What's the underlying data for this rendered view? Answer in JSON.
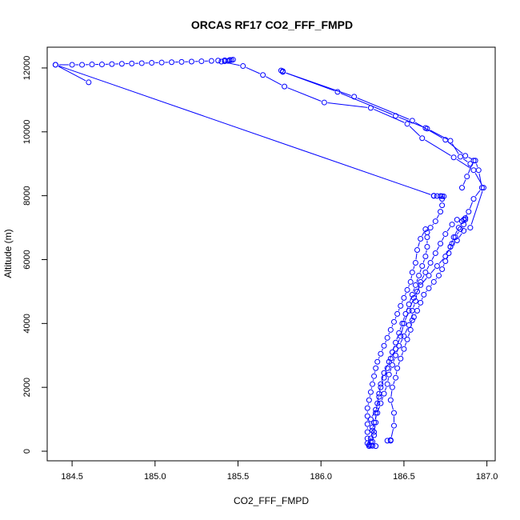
{
  "chart_data": {
    "type": "line",
    "title": "ORCAS RF17 CO2_FFF_FMPD",
    "xlabel": "CO2_FFF_FMPD",
    "ylabel": "Altitude (m)",
    "xlim": [
      184.35,
      187.05
    ],
    "ylim": [
      -300,
      12650
    ],
    "xticks": [
      184.5,
      185.0,
      185.5,
      186.0,
      186.5,
      187.0
    ],
    "xtick_labels": [
      "184.5",
      "185.0",
      "185.5",
      "186.0",
      "186.5",
      "187.0"
    ],
    "yticks": [
      0,
      2000,
      4000,
      6000,
      8000,
      10000,
      12000
    ],
    "yticks_labels": [
      "0",
      "2000",
      "4000",
      "6000",
      "8000",
      "10000",
      "12000"
    ],
    "grid": false,
    "series_color": "#0000ff",
    "line_style": "connected circles (type b)",
    "series": [
      {
        "values": [
          [
            186.3,
            180
          ],
          [
            186.31,
            300
          ],
          [
            186.32,
            500
          ],
          [
            186.31,
            750
          ],
          [
            186.3,
            1000
          ],
          [
            186.33,
            1300
          ],
          [
            186.35,
            1700
          ],
          [
            186.36,
            2000
          ],
          [
            186.38,
            2300
          ],
          [
            186.4,
            2600
          ],
          [
            186.42,
            2900
          ],
          [
            186.45,
            3200
          ],
          [
            186.48,
            3600
          ],
          [
            186.5,
            4000
          ],
          [
            186.53,
            4400
          ],
          [
            186.56,
            4800
          ],
          [
            186.6,
            5200
          ],
          [
            186.65,
            5500
          ],
          [
            186.7,
            5800
          ],
          [
            186.75,
            6100
          ],
          [
            186.78,
            6400
          ],
          [
            186.8,
            6700
          ],
          [
            186.83,
            7000
          ],
          [
            186.85,
            7200
          ],
          [
            186.87,
            7300
          ],
          [
            186.87,
            7250
          ],
          [
            186.86,
            7100
          ],
          [
            186.84,
            6950
          ],
          [
            186.81,
            6700
          ],
          [
            186.79,
            6500
          ],
          [
            186.77,
            6200
          ],
          [
            186.75,
            5950
          ],
          [
            186.73,
            5700
          ],
          [
            186.71,
            5500
          ],
          [
            186.68,
            5300
          ],
          [
            186.65,
            5100
          ],
          [
            186.62,
            4900
          ],
          [
            186.6,
            4650
          ],
          [
            186.58,
            4400
          ],
          [
            186.56,
            4200
          ],
          [
            186.53,
            3950
          ],
          [
            186.5,
            3600
          ],
          [
            186.47,
            3300
          ],
          [
            186.45,
            3000
          ],
          [
            186.43,
            2700
          ],
          [
            186.41,
            2400
          ],
          [
            186.4,
            2100
          ],
          [
            186.38,
            1800
          ],
          [
            186.36,
            1500
          ],
          [
            186.34,
            1200
          ],
          [
            186.32,
            900
          ],
          [
            186.31,
            650
          ],
          [
            186.3,
            400
          ],
          [
            186.29,
            200
          ],
          [
            186.29,
            160
          ],
          [
            186.31,
            170
          ],
          [
            186.33,
            160
          ]
        ]
      },
      {
        "values": [
          [
            186.3,
            300
          ],
          [
            186.32,
            600
          ],
          [
            186.33,
            900
          ],
          [
            186.33,
            1200
          ],
          [
            186.34,
            1500
          ],
          [
            186.35,
            1800
          ],
          [
            186.36,
            2100
          ],
          [
            186.38,
            2450
          ],
          [
            186.41,
            2800
          ],
          [
            186.43,
            3100
          ],
          [
            186.45,
            3400
          ],
          [
            186.47,
            3700
          ],
          [
            186.49,
            4000
          ],
          [
            186.51,
            4300
          ],
          [
            186.53,
            4600
          ],
          [
            186.55,
            4900
          ],
          [
            186.57,
            5200
          ],
          [
            186.59,
            5500
          ],
          [
            186.61,
            5800
          ],
          [
            186.63,
            6100
          ],
          [
            186.64,
            6400
          ],
          [
            186.64,
            6700
          ],
          [
            186.64,
            6850
          ],
          [
            186.66,
            7000
          ],
          [
            186.69,
            7200
          ],
          [
            186.72,
            7500
          ],
          [
            186.73,
            7700
          ],
          [
            186.73,
            7900
          ],
          [
            186.72,
            7990
          ],
          [
            186.73,
            7985
          ],
          [
            186.74,
            7980
          ],
          [
            186.7,
            7990
          ],
          [
            186.68,
            7995
          ]
        ]
      },
      {
        "values": [
          [
            186.68,
            8000
          ],
          [
            184.4,
            12100
          ],
          [
            184.5,
            12100
          ],
          [
            184.56,
            12100
          ],
          [
            184.62,
            12110
          ],
          [
            184.68,
            12110
          ],
          [
            184.74,
            12120
          ],
          [
            184.8,
            12130
          ],
          [
            184.86,
            12140
          ],
          [
            184.92,
            12150
          ],
          [
            184.98,
            12160
          ],
          [
            185.04,
            12170
          ],
          [
            185.1,
            12180
          ],
          [
            185.16,
            12190
          ],
          [
            185.22,
            12200
          ],
          [
            185.28,
            12210
          ],
          [
            185.34,
            12220
          ],
          [
            185.38,
            12230
          ],
          [
            185.42,
            12240
          ],
          [
            185.45,
            12250
          ],
          [
            185.46,
            12250
          ],
          [
            185.47,
            12260
          ],
          [
            185.45,
            12240
          ],
          [
            185.44,
            12220
          ],
          [
            185.42,
            12210
          ],
          [
            185.4,
            12200
          ],
          [
            185.53,
            12060
          ],
          [
            185.65,
            11780
          ],
          [
            185.78,
            11420
          ],
          [
            186.02,
            10920
          ],
          [
            186.3,
            10750
          ],
          [
            186.52,
            10250
          ],
          [
            186.61,
            9800
          ],
          [
            186.8,
            9200
          ],
          [
            186.92,
            8800
          ],
          [
            186.98,
            8250
          ],
          [
            186.9,
            7000
          ],
          [
            186.86,
            6900
          ],
          [
            186.82,
            6600
          ],
          [
            186.78,
            6400
          ]
        ]
      },
      {
        "values": [
          [
            184.6,
            11550
          ],
          [
            184.4,
            12100
          ]
        ]
      },
      {
        "values": [
          [
            185.76,
            11920
          ],
          [
            185.77,
            11900
          ],
          [
            185.77,
            11880
          ],
          [
            186.1,
            11250
          ],
          [
            186.45,
            10500
          ],
          [
            186.63,
            10120
          ],
          [
            186.64,
            10100
          ],
          [
            186.78,
            9720
          ],
          [
            186.84,
            9220
          ],
          [
            186.9,
            9000
          ],
          [
            186.92,
            9100
          ],
          [
            186.88,
            8600
          ],
          [
            186.85,
            8250
          ]
        ]
      },
      {
        "values": [
          [
            185.77,
            11880
          ],
          [
            186.2,
            11100
          ],
          [
            186.55,
            10350
          ],
          [
            186.75,
            9750
          ],
          [
            186.87,
            9250
          ],
          [
            186.93,
            9100
          ],
          [
            186.95,
            8800
          ],
          [
            186.97,
            8250
          ],
          [
            186.92,
            7900
          ],
          [
            186.89,
            7500
          ],
          [
            186.86,
            7250
          ]
        ]
      },
      {
        "values": [
          [
            186.63,
            6950
          ],
          [
            186.6,
            6650
          ],
          [
            186.58,
            6300
          ],
          [
            186.57,
            5900
          ],
          [
            186.55,
            5600
          ],
          [
            186.54,
            5300
          ],
          [
            186.52,
            5050
          ],
          [
            186.5,
            4800
          ],
          [
            186.48,
            4550
          ],
          [
            186.46,
            4300
          ],
          [
            186.44,
            4050
          ],
          [
            186.42,
            3800
          ],
          [
            186.4,
            3550
          ],
          [
            186.38,
            3300
          ],
          [
            186.36,
            3050
          ],
          [
            186.34,
            2800
          ],
          [
            186.33,
            2600
          ],
          [
            186.32,
            2350
          ],
          [
            186.31,
            2100
          ],
          [
            186.3,
            1850
          ],
          [
            186.29,
            1600
          ],
          [
            186.28,
            1350
          ],
          [
            186.28,
            1100
          ],
          [
            186.28,
            850
          ],
          [
            186.28,
            600
          ],
          [
            186.28,
            400
          ],
          [
            186.28,
            250
          ]
        ]
      },
      {
        "values": [
          [
            186.4,
            330
          ],
          [
            186.42,
            330
          ],
          [
            186.42,
            350
          ],
          [
            186.44,
            800
          ],
          [
            186.44,
            1200
          ],
          [
            186.42,
            1600
          ],
          [
            186.43,
            2000
          ],
          [
            186.45,
            2300
          ],
          [
            186.46,
            2600
          ],
          [
            186.48,
            2900
          ],
          [
            186.5,
            3200
          ],
          [
            186.52,
            3500
          ],
          [
            186.54,
            3800
          ],
          [
            186.55,
            4100
          ],
          [
            186.55,
            4400
          ],
          [
            186.57,
            4700
          ],
          [
            186.58,
            5000
          ],
          [
            186.6,
            5300
          ],
          [
            186.63,
            5600
          ],
          [
            186.66,
            5900
          ],
          [
            186.69,
            6200
          ],
          [
            186.72,
            6500
          ],
          [
            186.75,
            6800
          ],
          [
            186.79,
            7100
          ],
          [
            186.82,
            7250
          ]
        ]
      }
    ]
  }
}
